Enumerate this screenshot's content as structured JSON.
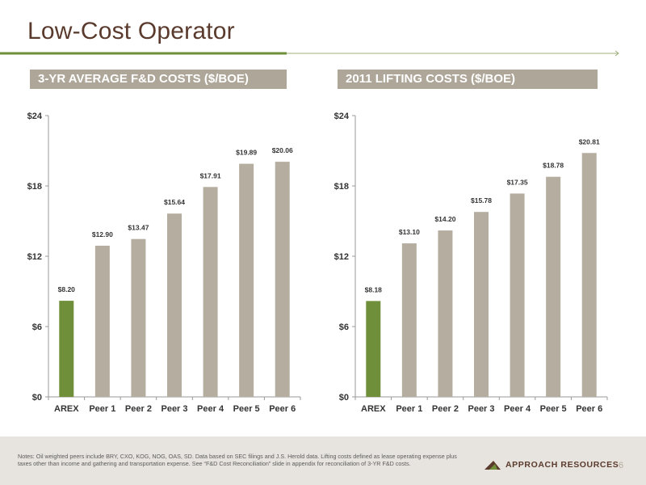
{
  "slide": {
    "title": "Low-Cost Operator",
    "page_number": "6"
  },
  "colors": {
    "title_text": "#5a3a2c",
    "accent_green": "#6f8f3a",
    "bar_peer": "#b5ad9f",
    "header_bg": "#aea698",
    "rule_gray": "#a0b07a",
    "footer_bg": "#e7e4df"
  },
  "header_left": "3-YR AVERAGE F&D COSTS ($/BOE)",
  "header_right": "2011 LIFTING COSTS ($/BOE)",
  "chart_data": [
    {
      "type": "bar",
      "title": "3-YR AVERAGE F&D COSTS ($/BOE)",
      "categories": [
        "AREX",
        "Peer 1",
        "Peer 2",
        "Peer 3",
        "Peer 4",
        "Peer 5",
        "Peer 6"
      ],
      "values": [
        8.2,
        12.9,
        13.47,
        15.64,
        17.91,
        19.89,
        20.06
      ],
      "data_labels": [
        "$8.20",
        "$12.90",
        "$13.47",
        "$15.64",
        "$17.91",
        "$19.89",
        "$20.06"
      ],
      "y_ticks": [
        0,
        6,
        12,
        18,
        24
      ],
      "y_tick_labels": [
        "$0",
        "$6",
        "$12",
        "$18",
        "$24"
      ],
      "ylim": [
        0,
        24
      ],
      "highlight_category": "AREX",
      "grid": false,
      "xlabel": "",
      "ylabel": ""
    },
    {
      "type": "bar",
      "title": "2011 LIFTING COSTS ($/BOE)",
      "categories": [
        "AREX",
        "Peer 1",
        "Peer 2",
        "Peer 3",
        "Peer 4",
        "Peer 5",
        "Peer 6"
      ],
      "values": [
        8.18,
        13.1,
        14.2,
        15.78,
        17.35,
        18.78,
        20.81
      ],
      "data_labels": [
        "$8.18",
        "$13.10",
        "$14.20",
        "$15.78",
        "$17.35",
        "$18.78",
        "$20.81"
      ],
      "y_ticks": [
        0,
        6,
        12,
        18,
        24
      ],
      "y_tick_labels": [
        "$0",
        "$6",
        "$12",
        "$18",
        "$24"
      ],
      "ylim": [
        0,
        24
      ],
      "highlight_category": "AREX",
      "grid": false,
      "xlabel": "",
      "ylabel": ""
    }
  ],
  "footer": {
    "notes": "Notes: Oil weighted peers include BRY, CXO, KOG, NOG, OAS, SD. Data based on SEC filings and J.S. Herold data. Lifting costs defined as lease operating expense plus taxes other than income and gathering and transportation expense. See “F&D Cost Reconciliation” slide in appendix for reconciliation of 3-YR F&D costs.",
    "logo_text": "APPROACH RESOURCES",
    "logo_icon": "mountain-logo-icon"
  }
}
